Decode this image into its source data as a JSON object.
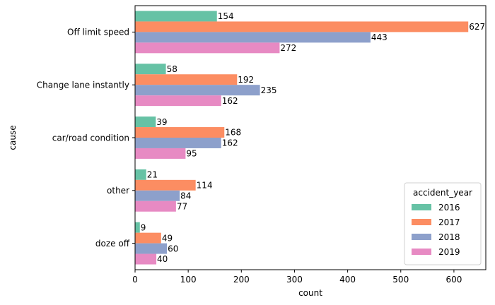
{
  "chart_data": {
    "type": "bar",
    "orientation": "horizontal",
    "categories": [
      "Off limit speed",
      "Change lane instantly",
      "car/road condition",
      "other",
      "doze off"
    ],
    "series": [
      {
        "name": "2016",
        "color": "#66c2a5",
        "values": [
          154,
          58,
          39,
          21,
          9
        ]
      },
      {
        "name": "2017",
        "color": "#fc8d62",
        "values": [
          627,
          192,
          168,
          114,
          49
        ]
      },
      {
        "name": "2018",
        "color": "#8da0cb",
        "values": [
          443,
          235,
          162,
          84,
          60
        ]
      },
      {
        "name": "2019",
        "color": "#e78ac3",
        "values": [
          272,
          162,
          95,
          77,
          40
        ]
      }
    ],
    "xlabel": "count",
    "ylabel": "cause",
    "xlim": [
      0,
      660
    ],
    "xticks": [
      0,
      100,
      200,
      300,
      400,
      500,
      600
    ],
    "legend": {
      "title": "accident_year",
      "placement": "lower-right"
    },
    "grid": false
  }
}
